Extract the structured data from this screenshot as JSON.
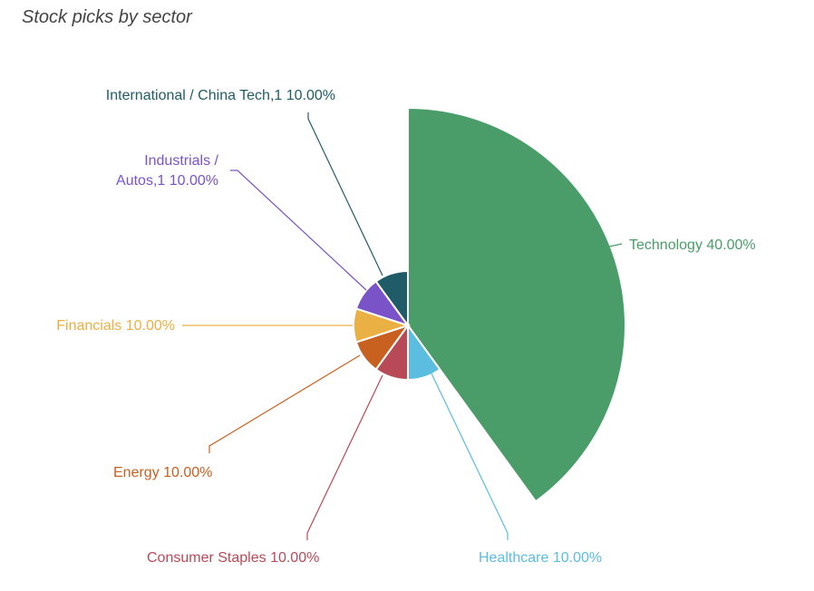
{
  "title": "Stock picks by sector",
  "chart_data": {
    "type": "pie",
    "variant": "rose",
    "title": "Stock picks by sector",
    "slices": [
      {
        "name": "Technology",
        "label": "Technology 40.00%",
        "value": 40,
        "radius": 240,
        "color": "#4a9d69"
      },
      {
        "name": "Healthcare",
        "label": "Healthcare 10.00%",
        "value": 10,
        "radius": 60,
        "color": "#5bbde0"
      },
      {
        "name": "Consumer Staples",
        "label": "Consumer Staples 10.00%",
        "value": 10,
        "radius": 60,
        "color": "#b84a58"
      },
      {
        "name": "Energy",
        "label": "Energy 10.00%",
        "value": 10,
        "radius": 60,
        "color": "#c8601f"
      },
      {
        "name": "Financials",
        "label": "Financials 10.00%",
        "value": 10,
        "radius": 60,
        "color": "#ebb043"
      },
      {
        "name": "Industrials / Autos,1",
        "label": "Industrials / Autos,1 10.00%",
        "value": 10,
        "radius": 60,
        "color": "#7b53c9"
      },
      {
        "name": "International / China Tech,1",
        "label": "International / China Tech,1 10.00%",
        "value": 10,
        "radius": 60,
        "color": "#1f5c68"
      }
    ]
  }
}
